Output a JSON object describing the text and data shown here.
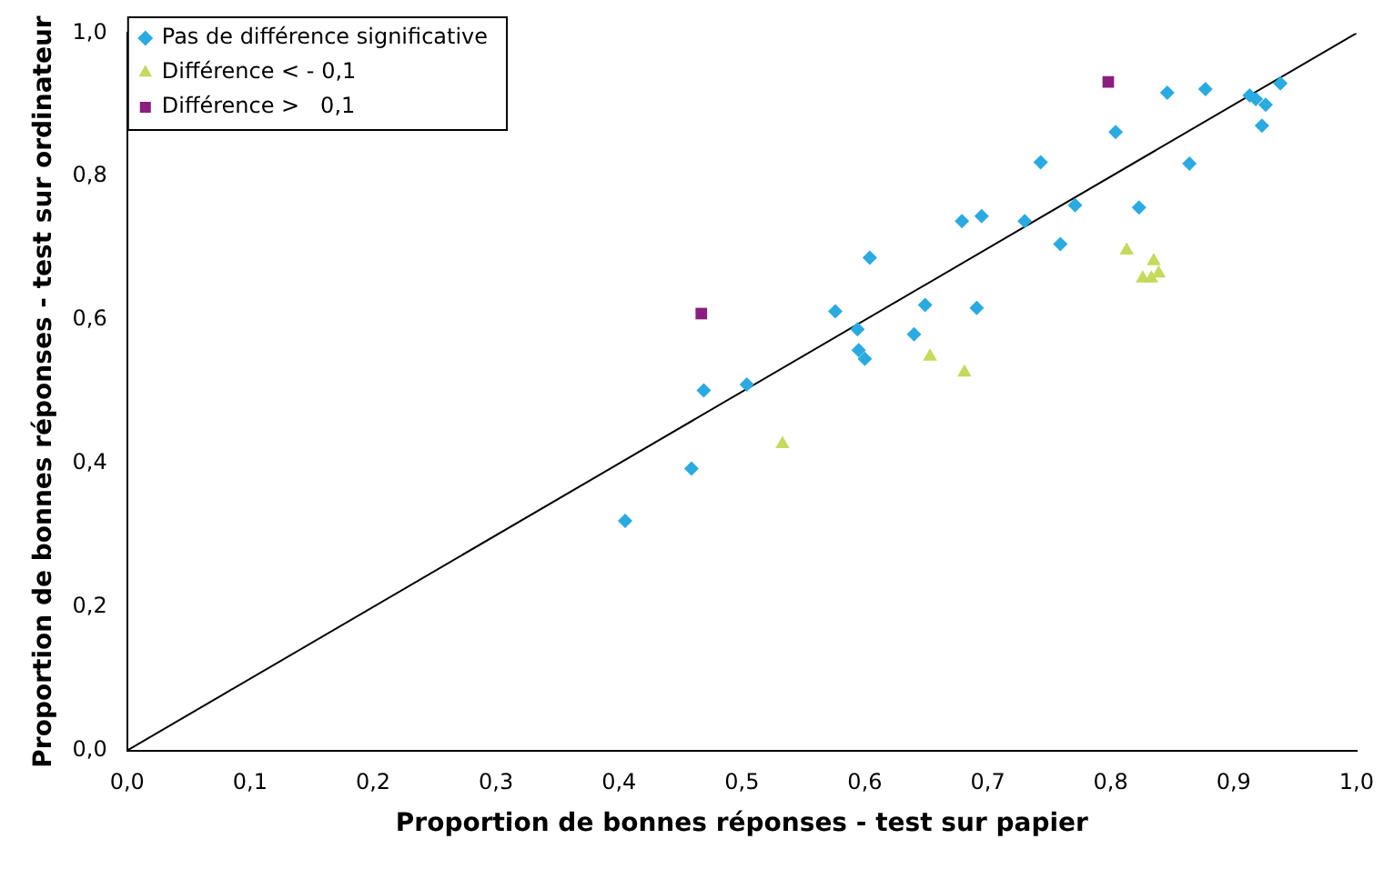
{
  "chart_data": {
    "type": "scatter",
    "xlabel": "Proportion de bonnes réponses - test sur papier",
    "ylabel": "Proportion de bonnes réponses - test sur ordinateur",
    "legend": "top left",
    "grid": false,
    "xlim": [
      0,
      1
    ],
    "ylim": [
      0,
      1
    ],
    "xticks": [
      {
        "value": 0,
        "label": "0,0"
      },
      {
        "value": 0.1,
        "label": "0,1"
      },
      {
        "value": 0.2,
        "label": "0,2"
      },
      {
        "value": 0.3,
        "label": "0,3"
      },
      {
        "value": 0.4,
        "label": "0,4"
      },
      {
        "value": 0.5,
        "label": "0,5"
      },
      {
        "value": 0.6,
        "label": "0,6"
      },
      {
        "value": 0.7,
        "label": "0,7"
      },
      {
        "value": 0.8,
        "label": "0,8"
      },
      {
        "value": 0.9,
        "label": "0,9"
      },
      {
        "value": 1,
        "label": "1,0"
      }
    ],
    "yticks": [
      {
        "value": 0,
        "label": "0,0"
      },
      {
        "value": 0.2,
        "label": "0,2"
      },
      {
        "value": 0.4,
        "label": "0,4"
      },
      {
        "value": 0.6,
        "label": "0,6"
      },
      {
        "value": 0.8,
        "label": "0,8"
      },
      {
        "value": 1,
        "label": "1,0"
      }
    ],
    "series": [
      {
        "name": "Pas de différence significative",
        "color": "#29abe2",
        "marker": "diamond",
        "x": [
          0.405,
          0.459,
          0.469,
          0.504,
          0.576,
          0.594,
          0.595,
          0.6,
          0.604,
          0.64,
          0.649,
          0.691,
          0.679,
          0.695,
          0.73,
          0.743,
          0.771,
          0.759,
          0.804,
          0.823,
          0.846,
          0.877,
          0.864,
          0.913,
          0.918,
          0.926,
          0.923,
          0.938
        ],
        "values": [
          0.32,
          0.393,
          0.502,
          0.51,
          0.612,
          0.587,
          0.558,
          0.546,
          0.687,
          0.58,
          0.621,
          0.617,
          0.738,
          0.745,
          0.738,
          0.82,
          0.76,
          0.706,
          0.862,
          0.757,
          0.917,
          0.922,
          0.818,
          0.913,
          0.908,
          0.9,
          0.871,
          0.93
        ]
      },
      {
        "name": "Différence < - 0,1",
        "color": "#c5d95a",
        "marker": "triangle",
        "x": [
          0.533,
          0.653,
          0.681,
          0.813,
          0.835,
          0.839,
          0.826,
          0.833
        ],
        "values": [
          0.427,
          0.549,
          0.527,
          0.697,
          0.682,
          0.665,
          0.658,
          0.658
        ]
      },
      {
        "name": "Différence >   0,1",
        "color": "#8b1e7e",
        "marker": "square",
        "x": [
          0.467,
          0.798
        ],
        "values": [
          0.609,
          0.932
        ]
      },
      {
        "type": "line",
        "color": "#000000",
        "marker": "none",
        "x": [
          0,
          1
        ],
        "values": [
          0,
          1
        ]
      }
    ]
  }
}
